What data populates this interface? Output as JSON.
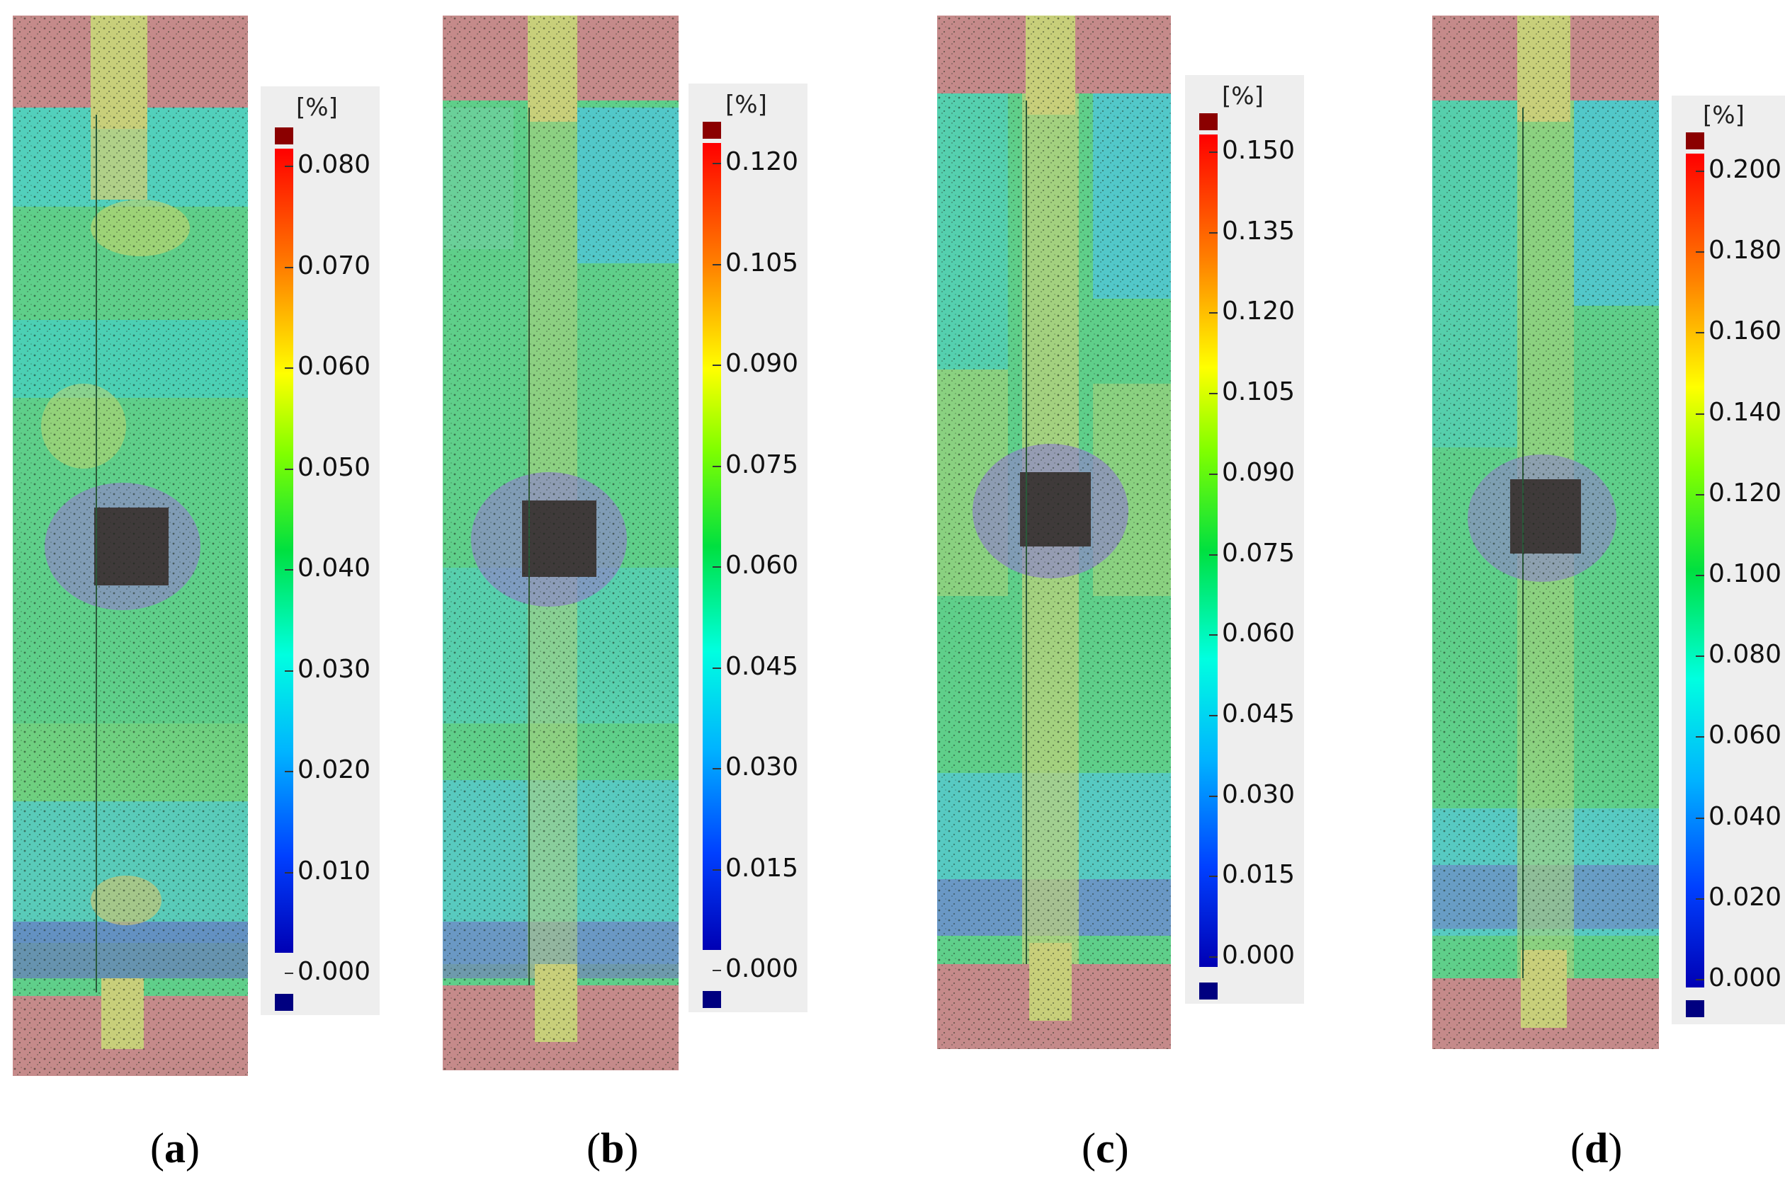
{
  "unit_label": "[%]",
  "colors": {
    "top_cap": "#8b0000",
    "bottom_cap": "#000080",
    "grip": "#c58a8a",
    "hole": "#3f3a3a"
  },
  "panels": [
    {
      "caption_open": "(",
      "caption_letter": "a",
      "caption_close": ")",
      "ticks": [
        "0.080",
        "0.070",
        "0.060",
        "0.050",
        "0.040",
        "0.030",
        "0.020",
        "0.010",
        "0.000"
      ]
    },
    {
      "caption_open": "(",
      "caption_letter": "b",
      "caption_close": ")",
      "ticks": [
        "0.120",
        "0.105",
        "0.090",
        "0.075",
        "0.060",
        "0.045",
        "0.030",
        "0.015",
        "0.000"
      ]
    },
    {
      "caption_open": "(",
      "caption_letter": "c",
      "caption_close": ")",
      "ticks": [
        "0.150",
        "0.135",
        "0.120",
        "0.105",
        "0.090",
        "0.075",
        "0.060",
        "0.045",
        "0.030",
        "0.015",
        "0.000"
      ]
    },
    {
      "caption_open": "(",
      "caption_letter": "d",
      "caption_close": ")",
      "ticks": [
        "0.200",
        "0.180",
        "0.160",
        "0.140",
        "0.120",
        "0.100",
        "0.080",
        "0.060",
        "0.040",
        "0.020",
        "0.000"
      ]
    }
  ]
}
